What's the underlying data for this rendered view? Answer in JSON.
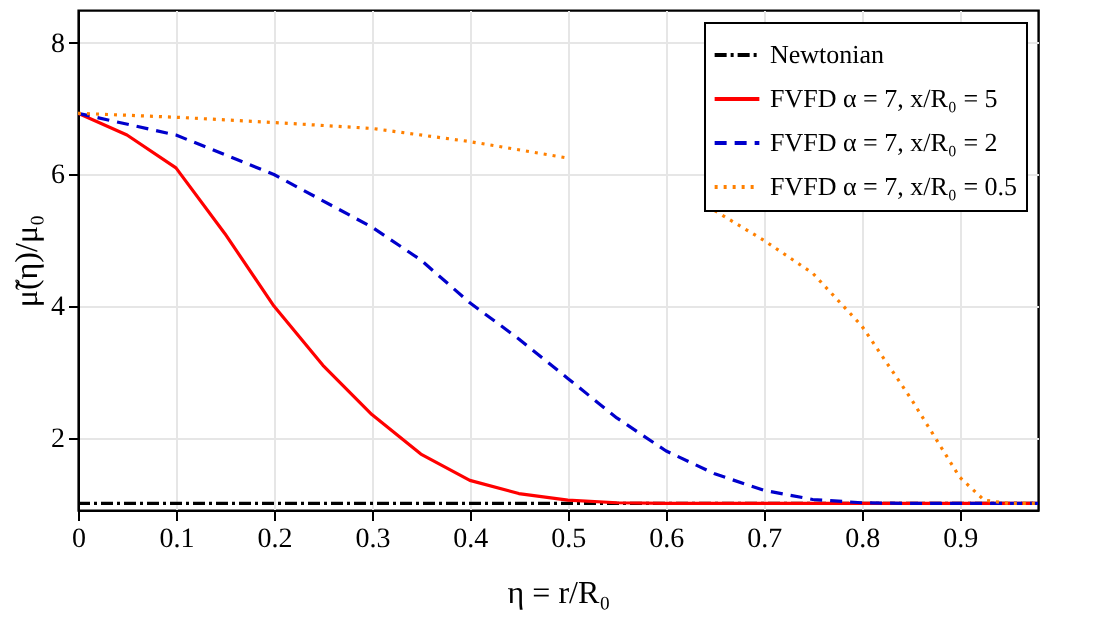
{
  "chart_data": {
    "type": "line",
    "xlabel": "η = r/R₀",
    "ylabel": "μ̃(η)/μ₀",
    "xlim": [
      0,
      0.98
    ],
    "ylim": [
      0.9,
      8.5
    ],
    "xticks": [
      0,
      0.1,
      0.2,
      0.3,
      0.4,
      0.5,
      0.6,
      0.7,
      0.8,
      0.9
    ],
    "yticks": [
      2,
      4,
      6,
      8
    ],
    "grid": true,
    "legend": "top right",
    "marker": "none",
    "series": [
      {
        "name": "Newtonian",
        "color": "#000000",
        "line_style": "dashdot",
        "x": [
          0,
          0.98
        ],
        "values": [
          1,
          1
        ]
      },
      {
        "name": "FVFD α = 7, x/R₀ = 5",
        "color": "#ff0000",
        "line_style": "solid",
        "x": [
          0,
          0.05,
          0.1,
          0.15,
          0.2,
          0.25,
          0.3,
          0.35,
          0.4,
          0.45,
          0.5,
          0.55,
          0.6,
          0.98
        ],
        "values": [
          6.93,
          6.6,
          6.1,
          5.1,
          4.0,
          3.1,
          2.35,
          1.75,
          1.35,
          1.15,
          1.05,
          1.01,
          1.0,
          1.0
        ]
      },
      {
        "name": "FVFD α = 7, x/R₀ = 2",
        "color": "#0000cc",
        "line_style": "dashed",
        "x": [
          0,
          0.1,
          0.2,
          0.3,
          0.35,
          0.4,
          0.45,
          0.5,
          0.55,
          0.6,
          0.65,
          0.7,
          0.75,
          0.8,
          0.85,
          0.98
        ],
        "values": [
          6.93,
          6.6,
          6.0,
          5.2,
          4.7,
          4.05,
          3.5,
          2.9,
          2.3,
          1.8,
          1.45,
          1.2,
          1.06,
          1.01,
          1.0,
          1.0
        ]
      },
      {
        "name": "FVFD α = 7, x/R₀ = 0.5",
        "color": "#ff8000",
        "line_style": "dotted",
        "x": [
          0,
          0.1,
          0.2,
          0.3,
          0.4,
          0.5,
          0.55,
          0.6,
          0.65,
          0.7,
          0.75,
          0.775,
          0.8,
          0.85,
          0.875,
          0.9,
          0.925,
          0.95,
          0.98
        ],
        "values": [
          6.93,
          6.87,
          6.79,
          6.7,
          6.5,
          6.25,
          null,
          null,
          5.45,
          5.0,
          4.5,
          4.1,
          3.7,
          2.6,
          2.0,
          1.4,
          1.05,
          1.0,
          1.0
        ]
      }
    ]
  }
}
